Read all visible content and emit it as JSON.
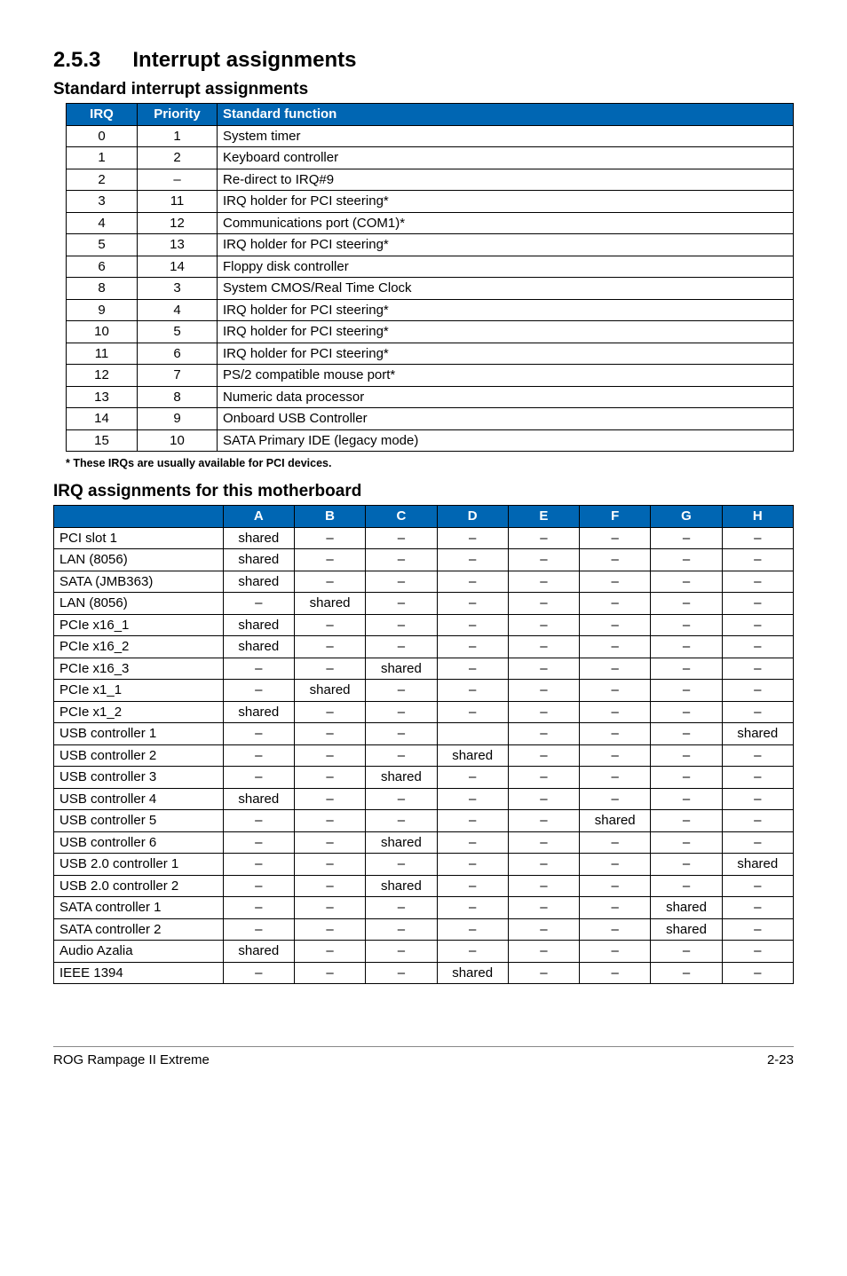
{
  "colors": {
    "header_bg": "#0066b3",
    "header_fg": "#ffffff",
    "row_border": "#000000"
  },
  "section": {
    "num": "2.5.3",
    "title": "Interrupt assignments"
  },
  "table1": {
    "heading": "Standard interrupt assignments",
    "columns": [
      "IRQ",
      "Priority",
      "Standard function"
    ],
    "rows": [
      [
        "0",
        "1",
        "System timer"
      ],
      [
        "1",
        "2",
        "Keyboard controller"
      ],
      [
        "2",
        "–",
        "Re-direct to IRQ#9"
      ],
      [
        "3",
        "11",
        "IRQ holder for PCI steering*"
      ],
      [
        "4",
        "12",
        "Communications port (COM1)*"
      ],
      [
        "5",
        "13",
        "IRQ holder for PCI steering*"
      ],
      [
        "6",
        "14",
        "Floppy disk controller"
      ],
      [
        "8",
        "3",
        "System CMOS/Real Time Clock"
      ],
      [
        "9",
        "4",
        "IRQ holder for PCI steering*"
      ],
      [
        "10",
        "5",
        "IRQ holder for PCI steering*"
      ],
      [
        "11",
        "6",
        "IRQ holder for PCI steering*"
      ],
      [
        "12",
        "7",
        "PS/2 compatible mouse port*"
      ],
      [
        "13",
        "8",
        "Numeric data processor"
      ],
      [
        "14",
        "9",
        "Onboard USB Controller"
      ],
      [
        "15",
        "10",
        "SATA Primary IDE (legacy mode)"
      ]
    ],
    "footnote": "* These IRQs are usually available for PCI devices."
  },
  "table2": {
    "heading": "IRQ assignments for this motherboard",
    "columns": [
      "",
      "A",
      "B",
      "C",
      "D",
      "E",
      "F",
      "G",
      "H"
    ],
    "rows": [
      [
        "PCI slot 1",
        "shared",
        "–",
        "–",
        "–",
        "–",
        "–",
        "–",
        "–"
      ],
      [
        "LAN (8056)",
        "shared",
        "–",
        "–",
        "–",
        "–",
        "–",
        "–",
        "–"
      ],
      [
        "SATA (JMB363)",
        "shared",
        "–",
        "–",
        "–",
        "–",
        "–",
        "–",
        "–"
      ],
      [
        "LAN (8056)",
        "–",
        "shared",
        "–",
        "–",
        "–",
        "–",
        "–",
        "–"
      ],
      [
        "PCIe x16_1",
        "shared",
        "–",
        "–",
        "–",
        "–",
        "–",
        "–",
        "–"
      ],
      [
        "PCIe x16_2",
        "shared",
        "–",
        "–",
        "–",
        "–",
        "–",
        "–",
        "–"
      ],
      [
        "PCIe x16_3",
        "–",
        "–",
        "shared",
        "–",
        "–",
        "–",
        "–",
        "–"
      ],
      [
        "PCIe x1_1",
        "–",
        "shared",
        "–",
        "–",
        "–",
        "–",
        "–",
        "–"
      ],
      [
        "PCIe x1_2",
        "shared",
        "–",
        "–",
        "–",
        "–",
        "–",
        "–",
        "–"
      ],
      [
        "USB controller 1",
        "–",
        "–",
        "–",
        "",
        "–",
        "–",
        "–",
        "shared"
      ],
      [
        "USB controller 2",
        "–",
        "–",
        "–",
        "shared",
        "–",
        "–",
        "–",
        "–"
      ],
      [
        "USB controller 3",
        "–",
        "–",
        "shared",
        "–",
        "–",
        "–",
        "–",
        "–"
      ],
      [
        "USB controller 4",
        "shared",
        "–",
        "–",
        "–",
        "–",
        "–",
        "–",
        "–"
      ],
      [
        "USB controller 5",
        "–",
        "–",
        "–",
        "–",
        "–",
        "shared",
        "–",
        "–"
      ],
      [
        "USB controller 6",
        "–",
        "–",
        "shared",
        "–",
        "–",
        "–",
        "–",
        "–"
      ],
      [
        "USB 2.0 controller 1",
        "–",
        "–",
        "–",
        "–",
        "–",
        "–",
        "–",
        "shared"
      ],
      [
        "USB 2.0 controller 2",
        "–",
        "–",
        "shared",
        "–",
        "–",
        "–",
        "–",
        "–"
      ],
      [
        "SATA controller 1",
        "–",
        "–",
        "–",
        "–",
        "–",
        "–",
        "shared",
        "–"
      ],
      [
        "SATA controller 2",
        "–",
        "–",
        "–",
        "–",
        "–",
        "–",
        "shared",
        "–"
      ],
      [
        "Audio Azalia",
        "shared",
        "–",
        "–",
        "–",
        "–",
        "–",
        "–",
        "–"
      ],
      [
        "IEEE 1394",
        "–",
        "–",
        "–",
        "shared",
        "–",
        "–",
        "–",
        "–"
      ]
    ]
  },
  "footer": {
    "left": "ROG Rampage II Extreme",
    "right": "2-23"
  }
}
